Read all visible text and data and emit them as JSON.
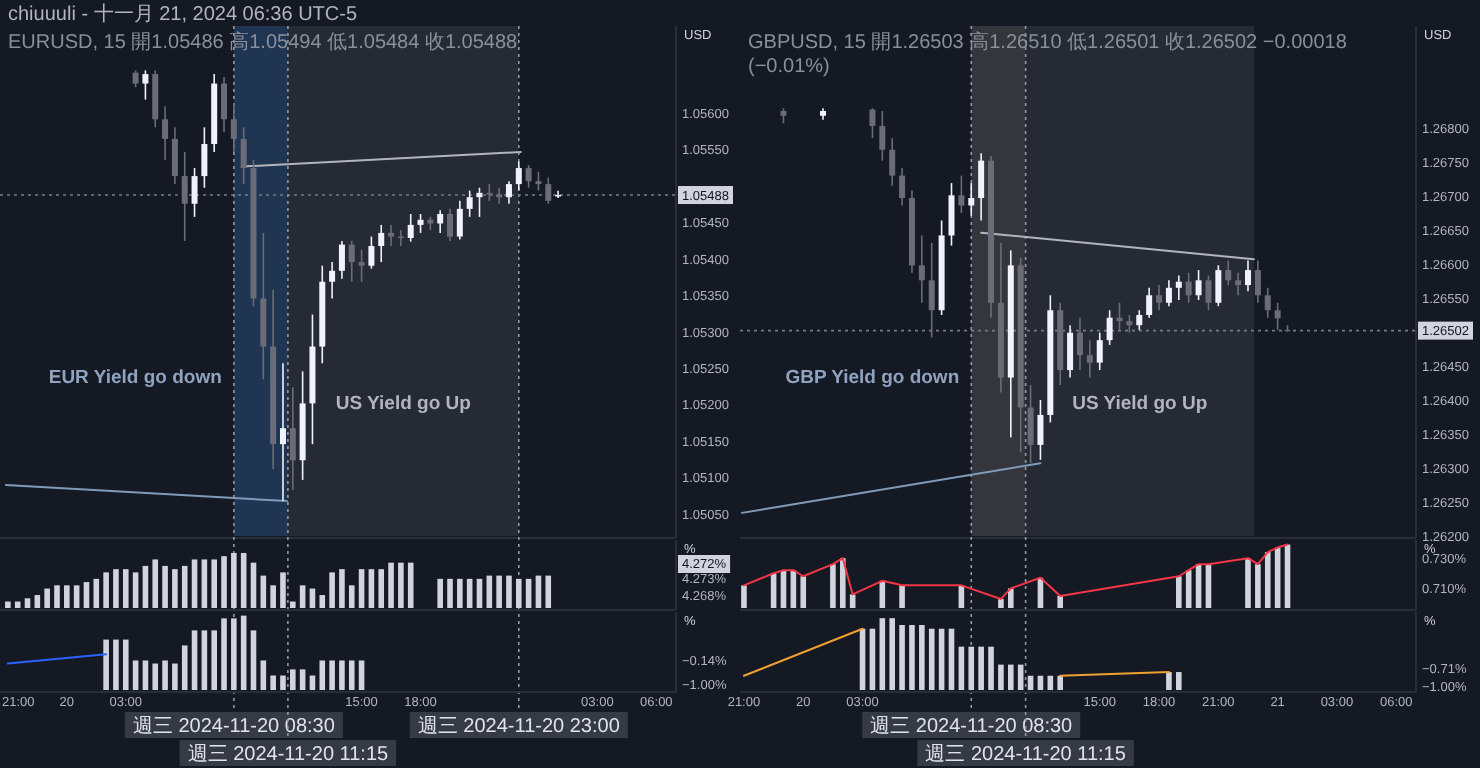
{
  "chart_data": [
    {
      "type": "candlestick",
      "title": "chiuuuli - 十一月 21, 2024 06:36 UTC-5",
      "subtitle": "EURUSD, 15 開1.05486 高1.05494 低1.05484 收1.05488",
      "ylabel": "USD",
      "x": [
        "2024-11-20T03:30",
        "2024-11-20T04:00",
        "2024-11-20T04:30",
        "2024-11-20T05:00",
        "2024-11-20T05:30",
        "2024-11-20T06:00",
        "2024-11-20T06:30",
        "2024-11-20T07:00",
        "2024-11-20T07:30",
        "2024-11-20T08:00",
        "2024-11-20T08:30",
        "2024-11-20T09:00",
        "2024-11-20T09:30",
        "2024-11-20T10:00",
        "2024-11-20T10:30",
        "2024-11-20T11:00",
        "2024-11-20T11:30",
        "2024-11-20T12:00",
        "2024-11-20T12:30",
        "2024-11-20T13:00",
        "2024-11-20T13:30",
        "2024-11-20T14:00",
        "2024-11-20T14:30",
        "2024-11-20T15:00",
        "2024-11-20T15:30",
        "2024-11-20T16:00",
        "2024-11-20T16:30",
        "2024-11-20T17:00",
        "2024-11-20T17:30",
        "2024-11-20T18:00",
        "2024-11-20T18:30",
        "2024-11-20T19:00",
        "2024-11-20T19:30",
        "2024-11-20T20:00",
        "2024-11-20T20:30",
        "2024-11-20T21:00",
        "2024-11-20T21:30",
        "2024-11-20T22:00",
        "2024-11-20T22:30",
        "2024-11-20T23:00",
        "2024-11-20T23:30",
        "2024-11-21T00:00",
        "2024-11-21T00:30",
        "2024-11-21T01:00"
      ],
      "ohlc": [
        [
          1.05656,
          1.05659,
          1.05636,
          1.05641
        ],
        [
          1.05641,
          1.05659,
          1.05619,
          1.05654
        ],
        [
          1.05654,
          1.05659,
          1.05581,
          1.05592
        ],
        [
          1.05592,
          1.0561,
          1.05536,
          1.05565
        ],
        [
          1.05565,
          1.05581,
          1.05503,
          1.05514
        ],
        [
          1.05514,
          1.05547,
          1.05425,
          1.05476
        ],
        [
          1.05476,
          1.05525,
          1.05458,
          1.05514
        ],
        [
          1.05514,
          1.05581,
          1.05498,
          1.05558
        ],
        [
          1.05558,
          1.05654,
          1.05547,
          1.05641
        ],
        [
          1.05641,
          1.0565,
          1.05574,
          1.05592
        ],
        [
          1.05592,
          1.05614,
          1.05547,
          1.05565
        ],
        [
          1.05565,
          1.05581,
          1.05503,
          1.05525
        ],
        [
          1.05525,
          1.05536,
          1.05335,
          1.05346
        ],
        [
          1.05346,
          1.05436,
          1.05235,
          1.0528
        ],
        [
          1.0528,
          1.05358,
          1.05112,
          1.05146
        ],
        [
          1.05146,
          1.05257,
          1.05068,
          1.05168
        ],
        [
          1.05168,
          1.05224,
          1.05083,
          1.05124
        ],
        [
          1.05124,
          1.05246,
          1.05097,
          1.05202
        ],
        [
          1.05202,
          1.05324,
          1.05146,
          1.0528
        ],
        [
          1.0528,
          1.05391,
          1.05257,
          1.05369
        ],
        [
          1.05369,
          1.05396,
          1.05346,
          1.05384
        ],
        [
          1.05384,
          1.05425,
          1.05373,
          1.0542
        ],
        [
          1.0542,
          1.05425,
          1.05369,
          1.05396
        ],
        [
          1.05396,
          1.05413,
          1.05369,
          1.05391
        ],
        [
          1.05391,
          1.05431,
          1.05387,
          1.05418
        ],
        [
          1.05418,
          1.05447,
          1.05396,
          1.05436
        ],
        [
          1.05436,
          1.05447,
          1.05418,
          1.05431
        ],
        [
          1.05431,
          1.0544,
          1.05418,
          1.05429
        ],
        [
          1.05429,
          1.05462,
          1.05424,
          1.05447
        ],
        [
          1.05447,
          1.05462,
          1.05436,
          1.05454
        ],
        [
          1.05454,
          1.05458,
          1.0544,
          1.05449
        ],
        [
          1.05449,
          1.05467,
          1.05436,
          1.05462
        ],
        [
          1.05462,
          1.05469,
          1.05425,
          1.05431
        ],
        [
          1.05431,
          1.0548,
          1.05427,
          1.05469
        ],
        [
          1.05469,
          1.05494,
          1.05458,
          1.05485
        ],
        [
          1.05485,
          1.05498,
          1.05458,
          1.05491
        ],
        [
          1.05491,
          1.05503,
          1.0548,
          1.05489
        ],
        [
          1.05489,
          1.05498,
          1.05476,
          1.05485
        ],
        [
          1.05485,
          1.05507,
          1.05476,
          1.05503
        ],
        [
          1.05503,
          1.05534,
          1.05494,
          1.05525
        ],
        [
          1.05525,
          1.05529,
          1.05498,
          1.05507
        ],
        [
          1.05507,
          1.0552,
          1.05494,
          1.05503
        ],
        [
          1.05503,
          1.05512,
          1.05476,
          1.0548
        ],
        [
          1.05486,
          1.05494,
          1.05484,
          1.05488
        ]
      ],
      "series": [
        {
          "type": "line",
          "color": "#b2b5be",
          "x": [
            "2024-11-20T08:54",
            "2024-11-20T23:06"
          ],
          "values": [
            1.05527,
            1.05547
          ]
        },
        {
          "type": "line",
          "color": "#7f9bb8",
          "x": [
            "2024-11-19T20:54",
            "2024-11-20T11:12"
          ],
          "values": [
            1.0509,
            1.05068
          ]
        }
      ],
      "xlim": [
        "2024-11-19T20:36",
        "2024-11-21T07:00"
      ],
      "ylim": [
        1.0502,
        1.0572
      ],
      "yticks": [
        {
          "value": 1.0505,
          "label": "1.05050"
        },
        {
          "value": 1.051,
          "label": "1.05100"
        },
        {
          "value": 1.0515,
          "label": "1.05150"
        },
        {
          "value": 1.052,
          "label": "1.05200"
        },
        {
          "value": 1.0525,
          "label": "1.05250"
        },
        {
          "value": 1.053,
          "label": "1.05300"
        },
        {
          "value": 1.0535,
          "label": "1.05350"
        },
        {
          "value": 1.054,
          "label": "1.05400"
        },
        {
          "value": 1.0545,
          "label": "1.05450"
        },
        {
          "value": 1.0555,
          "label": "1.05550"
        },
        {
          "value": 1.056,
          "label": "1.05600"
        }
      ],
      "tick_labels": "y",
      "bands": [
        {
          "axis": "x",
          "from": "2024-11-20T08:30",
          "to": "2024-11-20T11:15",
          "color": "#1f3552"
        },
        {
          "axis": "x",
          "from": "2024-11-20T11:15",
          "to": "2024-11-20T23:00",
          "color": "#262a35"
        }
      ],
      "ref_lines": [
        {
          "axis": "x",
          "value": "2024-11-20T08:30",
          "label": "週三 2024-11-20 08:30",
          "line_style": "dotted",
          "color": "#9598a1"
        },
        {
          "axis": "x",
          "value": "2024-11-20T11:15",
          "label": "週三 2024-11-20 11:15",
          "line_style": "dotted",
          "color": "#9598a1"
        },
        {
          "axis": "x",
          "value": "2024-11-20T23:00",
          "label": "週三 2024-11-20 23:00",
          "line_style": "dotted",
          "color": "#9598a1"
        },
        {
          "axis": "y",
          "value": 1.05488,
          "label": "1.05488",
          "line_style": "dotted",
          "color": "#787b86"
        }
      ],
      "annotations": [
        "EUR Yield go down",
        "US Yield go Up"
      ]
    },
    {
      "type": "bar",
      "ylabel": "%",
      "x": [
        "2024-11-19T21:00",
        "2024-11-19T21:30",
        "2024-11-19T22:00",
        "2024-11-19T22:30",
        "2024-11-19T23:00",
        "2024-11-19T23:30",
        "2024-11-20T00:00",
        "2024-11-20T00:30",
        "2024-11-20T01:00",
        "2024-11-20T01:30",
        "2024-11-20T02:00",
        "2024-11-20T02:30",
        "2024-11-20T03:00",
        "2024-11-20T03:30",
        "2024-11-20T04:00",
        "2024-11-20T04:30",
        "2024-11-20T05:00",
        "2024-11-20T05:30",
        "2024-11-20T06:00",
        "2024-11-20T06:30",
        "2024-11-20T07:00",
        "2024-11-20T07:30",
        "2024-11-20T08:00",
        "2024-11-20T08:30",
        "2024-11-20T09:00",
        "2024-11-20T09:30",
        "2024-11-20T10:00",
        "2024-11-20T10:30",
        "2024-11-20T11:00",
        "2024-11-20T11:30",
        "2024-11-20T12:00",
        "2024-11-20T12:30",
        "2024-11-20T13:00",
        "2024-11-20T13:30",
        "2024-11-20T14:00",
        "2024-11-20T14:30",
        "2024-11-20T15:00",
        "2024-11-20T15:30",
        "2024-11-20T16:00",
        "2024-11-20T16:30",
        "2024-11-20T17:00",
        "2024-11-20T17:30",
        "2024-11-20T19:00",
        "2024-11-20T19:30",
        "2024-11-20T20:00",
        "2024-11-20T20:30",
        "2024-11-20T21:00",
        "2024-11-20T21:30",
        "2024-11-20T22:00",
        "2024-11-20T22:30",
        "2024-11-20T23:00",
        "2024-11-20T23:30",
        "2024-11-21T00:00",
        "2024-11-21T00:30"
      ],
      "series": [
        {
          "color": "#d1d4dc",
          "values": [
            4.266,
            4.266,
            4.267,
            4.268,
            4.27,
            4.271,
            4.271,
            4.271,
            4.272,
            4.273,
            4.275,
            4.276,
            4.276,
            4.275,
            4.277,
            4.279,
            4.277,
            4.276,
            4.277,
            4.279,
            4.279,
            4.279,
            4.28,
            4.281,
            4.281,
            4.278,
            4.274,
            4.271,
            4.275,
            4.266,
            4.271,
            4.27,
            4.268,
            4.275,
            4.276,
            4.271,
            4.276,
            4.276,
            4.276,
            4.278,
            4.278,
            4.278,
            4.273,
            4.273,
            4.273,
            4.273,
            4.273,
            4.274,
            4.274,
            4.274,
            4.273,
            4.273,
            4.274,
            4.274
          ]
        }
      ],
      "xlim": [
        "2024-11-19T20:36",
        "2024-11-21T07:00"
      ],
      "ylim": [
        4.264,
        4.285
      ],
      "yticks": [
        {
          "value": 4.268,
          "label": "4.268%"
        },
        {
          "value": 4.273,
          "label": "4.273%"
        }
      ],
      "tick_labels": "y",
      "annotations": [
        "4.272%"
      ]
    },
    {
      "type": "bar",
      "ylabel": "%",
      "x": [
        "2024-11-20T02:00",
        "2024-11-20T02:30",
        "2024-11-20T03:00",
        "2024-11-20T03:30",
        "2024-11-20T04:00",
        "2024-11-20T04:30",
        "2024-11-20T05:00",
        "2024-11-20T05:30",
        "2024-11-20T06:00",
        "2024-11-20T06:30",
        "2024-11-20T07:00",
        "2024-11-20T07:30",
        "2024-11-20T08:00",
        "2024-11-20T08:30",
        "2024-11-20T09:00",
        "2024-11-20T09:30",
        "2024-11-20T10:00",
        "2024-11-20T10:30",
        "2024-11-20T11:00",
        "2024-11-20T11:30",
        "2024-11-20T12:00",
        "2024-11-20T12:30",
        "2024-11-20T13:00",
        "2024-11-20T13:30",
        "2024-11-20T14:00",
        "2024-11-20T14:30",
        "2024-11-20T15:00"
      ],
      "series": [
        {
          "color": "#d1d4dc",
          "base": [
            -1.2,
            -1.2,
            -1.2,
            -1.2,
            -1.2,
            -1.2,
            -1.2,
            -1.2,
            -1.2,
            -1.2,
            -1.2,
            -1.2,
            -1.2,
            -1.2,
            -1.2,
            -1.2,
            -1.2,
            -1.2,
            -1.2,
            -1.2,
            -1.2,
            -1.2,
            -1.2,
            -1.2,
            -1.2,
            -1.2,
            -1.2
          ],
          "values": [
            1.81,
            1.81,
            1.81,
            1.06,
            1.06,
            0.95,
            1.06,
            0.95,
            1.6,
            2.14,
            2.14,
            2.14,
            2.57,
            2.57,
            2.67,
            2.14,
            1.06,
            0.52,
            0.52,
            0.74,
            0.74,
            0.52,
            1.06,
            1.06,
            1.06,
            1.06,
            1.06
          ]
        },
        {
          "type": "line",
          "color": "#2962ff",
          "x": [
            "2024-11-19T21:00",
            "2024-11-20T02:00"
          ],
          "values": [
            -0.25,
            0.08
          ]
        }
      ],
      "xlim": [
        "2024-11-19T20:36",
        "2024-11-21T07:00"
      ],
      "ylim": [
        -1.2,
        1.6
      ],
      "yticks": [
        {
          "value": -0.14,
          "label": "−0.14%"
        },
        {
          "value": -1.0,
          "label": "−1.00%"
        }
      ],
      "xticks": [
        {
          "value": "2024-11-19T21:00",
          "label": "21:00"
        },
        {
          "value": "2024-11-20T00:00",
          "label": "20"
        },
        {
          "value": "2024-11-20T03:00",
          "label": "03:00"
        },
        {
          "value": "2024-11-20T15:00",
          "label": "15:00"
        },
        {
          "value": "2024-11-20T18:00",
          "label": "18:00"
        },
        {
          "value": "2024-11-21T03:00",
          "label": "03:00"
        },
        {
          "value": "2024-11-21T06:00",
          "label": "06:00"
        }
      ]
    },
    {
      "type": "candlestick",
      "subtitle": "GBPUSD, 15 開1.26503 高1.26510 低1.26501 收1.26502 −0.00018 (−0.01%)",
      "ylabel": "USD",
      "x": [
        "2024-11-19T23:00",
        "2024-11-20T01:00",
        "2024-11-20T03:30",
        "2024-11-20T04:00",
        "2024-11-20T04:30",
        "2024-11-20T05:00",
        "2024-11-20T05:30",
        "2024-11-20T06:00",
        "2024-11-20T06:30",
        "2024-11-20T07:00",
        "2024-11-20T07:30",
        "2024-11-20T08:00",
        "2024-11-20T08:30",
        "2024-11-20T09:00",
        "2024-11-20T09:30",
        "2024-11-20T10:00",
        "2024-11-20T10:30",
        "2024-11-20T11:00",
        "2024-11-20T11:30",
        "2024-11-20T12:00",
        "2024-11-20T12:30",
        "2024-11-20T13:00",
        "2024-11-20T13:30",
        "2024-11-20T14:00",
        "2024-11-20T14:30",
        "2024-11-20T15:00",
        "2024-11-20T15:30",
        "2024-11-20T16:00",
        "2024-11-20T16:30",
        "2024-11-20T17:00",
        "2024-11-20T17:30",
        "2024-11-20T18:00",
        "2024-11-20T18:30",
        "2024-11-20T19:00",
        "2024-11-20T19:30",
        "2024-11-20T20:00",
        "2024-11-20T20:30",
        "2024-11-20T21:00",
        "2024-11-20T21:30",
        "2024-11-20T22:00",
        "2024-11-20T22:30",
        "2024-11-20T23:00",
        "2024-11-20T23:30",
        "2024-11-21T00:00",
        "2024-11-21T00:30"
      ],
      "ohlc": [
        [
          1.26825,
          1.26829,
          1.26807,
          1.26818
        ],
        [
          1.26818,
          1.26829,
          1.26812,
          1.26825
        ],
        [
          1.26827,
          1.26829,
          1.26785,
          1.26803
        ],
        [
          1.26803,
          1.26825,
          1.26752,
          1.26768
        ],
        [
          1.26768,
          1.26785,
          1.26715,
          1.2673
        ],
        [
          1.2673,
          1.26741,
          1.26686,
          1.26697
        ],
        [
          1.26697,
          1.26708,
          1.26587,
          1.26598
        ],
        [
          1.26598,
          1.26642,
          1.26543,
          1.26576
        ],
        [
          1.26576,
          1.26631,
          1.26492,
          1.26532
        ],
        [
          1.26532,
          1.26664,
          1.26525,
          1.26642
        ],
        [
          1.26642,
          1.26719,
          1.26627,
          1.26701
        ],
        [
          1.26701,
          1.2673,
          1.26675,
          1.26686
        ],
        [
          1.26686,
          1.26719,
          1.26671,
          1.26697
        ],
        [
          1.26697,
          1.26763,
          1.26664,
          1.26752
        ],
        [
          1.26752,
          1.26759,
          1.26521,
          1.26543
        ],
        [
          1.26543,
          1.26631,
          1.26411,
          1.26433
        ],
        [
          1.26433,
          1.2662,
          1.26345,
          1.26598
        ],
        [
          1.26598,
          1.26609,
          1.26323,
          1.26389
        ],
        [
          1.26389,
          1.26422,
          1.26307,
          1.26334
        ],
        [
          1.26334,
          1.264,
          1.26312,
          1.26378
        ],
        [
          1.26378,
          1.26554,
          1.26367,
          1.26532
        ],
        [
          1.26532,
          1.26543,
          1.26422,
          1.26444
        ],
        [
          1.26444,
          1.2651,
          1.26433,
          1.26499
        ],
        [
          1.26499,
          1.26521,
          1.26444,
          1.26466
        ],
        [
          1.26466,
          1.26488,
          1.26433,
          1.26455
        ],
        [
          1.26455,
          1.26499,
          1.26444,
          1.26488
        ],
        [
          1.26488,
          1.26532,
          1.26481,
          1.26521
        ],
        [
          1.26521,
          1.26543,
          1.26503,
          1.26516
        ],
        [
          1.26516,
          1.26525,
          1.26499,
          1.2651
        ],
        [
          1.2651,
          1.26532,
          1.26503,
          1.26525
        ],
        [
          1.26525,
          1.26565,
          1.26521,
          1.26554
        ],
        [
          1.26554,
          1.26569,
          1.26532,
          1.26543
        ],
        [
          1.26543,
          1.26576,
          1.26538,
          1.26565
        ],
        [
          1.26565,
          1.26583,
          1.26547,
          1.26574
        ],
        [
          1.26574,
          1.26587,
          1.26543,
          1.26554
        ],
        [
          1.26554,
          1.26591,
          1.26547,
          1.26576
        ],
        [
          1.26576,
          1.26583,
          1.26532,
          1.26543
        ],
        [
          1.26543,
          1.26598,
          1.26538,
          1.26591
        ],
        [
          1.26591,
          1.26605,
          1.26569,
          1.26576
        ],
        [
          1.26576,
          1.26587,
          1.26554,
          1.26569
        ],
        [
          1.26569,
          1.26605,
          1.2656,
          1.26591
        ],
        [
          1.26591,
          1.26605,
          1.26543,
          1.26554
        ],
        [
          1.26554,
          1.26565,
          1.26521,
          1.26532
        ],
        [
          1.26532,
          1.26543,
          1.26503,
          1.2652
        ],
        [
          1.26503,
          1.2651,
          1.26501,
          1.26502
        ]
      ],
      "series": [
        {
          "type": "line",
          "color": "#b2b5be",
          "x": [
            "2024-11-20T09:00",
            "2024-11-20T22:48"
          ],
          "values": [
            1.26646,
            1.26607
          ]
        },
        {
          "type": "line",
          "color": "#7f9bb8",
          "x": [
            "2024-11-19T20:54",
            "2024-11-20T12:00"
          ],
          "values": [
            1.26234,
            1.26307
          ]
        }
      ],
      "xlim": [
        "2024-11-19T20:48",
        "2024-11-21T07:00"
      ],
      "ylim": [
        1.262,
        1.2695
      ],
      "yticks": [
        {
          "value": 1.262,
          "label": "1.26200"
        },
        {
          "value": 1.2625,
          "label": "1.26250"
        },
        {
          "value": 1.263,
          "label": "1.26300"
        },
        {
          "value": 1.2635,
          "label": "1.26350"
        },
        {
          "value": 1.264,
          "label": "1.26400"
        },
        {
          "value": 1.2645,
          "label": "1.26450"
        },
        {
          "value": 1.2655,
          "label": "1.26550"
        },
        {
          "value": 1.266,
          "label": "1.26600"
        },
        {
          "value": 1.2665,
          "label": "1.26650"
        },
        {
          "value": 1.267,
          "label": "1.26700"
        },
        {
          "value": 1.2675,
          "label": "1.26750"
        },
        {
          "value": 1.268,
          "label": "1.26800"
        }
      ],
      "tick_labels": "y",
      "bands": [
        {
          "axis": "x",
          "from": "2024-11-20T08:30",
          "to": "2024-11-20T11:15",
          "color": "#35363c"
        },
        {
          "axis": "x",
          "from": "2024-11-20T11:15",
          "to": "2024-11-20T22:48",
          "color": "#262a35"
        }
      ],
      "ref_lines": [
        {
          "axis": "x",
          "value": "2024-11-20T08:30",
          "label": "週三 2024-11-20 08:30",
          "line_style": "dotted",
          "color": "#9598a1"
        },
        {
          "axis": "x",
          "value": "2024-11-20T11:15",
          "label": "週三 2024-11-20 11:15",
          "line_style": "dotted",
          "color": "#9598a1"
        },
        {
          "axis": "y",
          "value": 1.26502,
          "label": "1.26502",
          "line_style": "dotted",
          "color": "#787b86"
        }
      ],
      "annotations": [
        "GBP Yield go down",
        "US Yield go Up"
      ]
    },
    {
      "type": "bar",
      "ylabel": "%",
      "x": [
        "2024-11-19T21:00",
        "2024-11-19T22:30",
        "2024-11-19T23:00",
        "2024-11-19T23:30",
        "2024-11-20T00:00",
        "2024-11-20T01:30",
        "2024-11-20T02:00",
        "2024-11-20T02:30",
        "2024-11-20T04:00",
        "2024-11-20T05:00",
        "2024-11-20T08:00",
        "2024-11-20T10:00",
        "2024-11-20T10:30",
        "2024-11-20T12:00",
        "2024-11-20T13:00",
        "2024-11-20T19:00",
        "2024-11-20T19:30",
        "2024-11-20T20:00",
        "2024-11-20T20:30",
        "2024-11-20T22:30",
        "2024-11-20T23:00",
        "2024-11-20T23:30",
        "2024-11-21T00:00",
        "2024-11-21T00:30"
      ],
      "series": [
        {
          "color": "#d1d4dc",
          "values": [
            0.712,
            0.72,
            0.722,
            0.722,
            0.718,
            0.726,
            0.73,
            0.706,
            0.715,
            0.712,
            0.712,
            0.703,
            0.71,
            0.717,
            0.705,
            0.718,
            0.722,
            0.726,
            0.726,
            0.73,
            0.726,
            0.734,
            0.737,
            0.739
          ]
        },
        {
          "type": "line",
          "color": "#f23645",
          "values": [
            0.712,
            0.72,
            0.722,
            0.722,
            0.718,
            0.726,
            0.73,
            0.706,
            0.715,
            0.712,
            0.712,
            0.703,
            0.71,
            0.717,
            0.705,
            0.718,
            0.722,
            0.726,
            0.726,
            0.73,
            0.726,
            0.734,
            0.737,
            0.739
          ]
        }
      ],
      "xlim": [
        "2024-11-19T20:48",
        "2024-11-21T07:00"
      ],
      "ylim": [
        0.697,
        0.742
      ],
      "yticks": [
        {
          "value": 0.73,
          "label": "0.730%"
        },
        {
          "value": 0.71,
          "label": "0.710%"
        }
      ],
      "tick_labels": "y"
    },
    {
      "type": "bar",
      "ylabel": "%",
      "x": [
        "2024-11-20T03:00",
        "2024-11-20T03:30",
        "2024-11-20T04:00",
        "2024-11-20T04:30",
        "2024-11-20T05:00",
        "2024-11-20T05:30",
        "2024-11-20T06:00",
        "2024-11-20T06:30",
        "2024-11-20T07:00",
        "2024-11-20T07:30",
        "2024-11-20T08:00",
        "2024-11-20T08:30",
        "2024-11-20T09:00",
        "2024-11-20T09:30",
        "2024-11-20T10:00",
        "2024-11-20T10:30",
        "2024-11-20T11:00",
        "2024-11-20T11:30",
        "2024-11-20T12:00",
        "2024-11-20T12:30",
        "2024-11-20T13:00",
        "2024-11-20T18:30",
        "2024-11-20T19:00"
      ],
      "series": [
        {
          "color": "#d1d4dc",
          "base": [
            -1.06,
            -1.06,
            -1.06,
            -1.06,
            -1.06,
            -1.06,
            -1.06,
            -1.06,
            -1.06,
            -1.06,
            -1.06,
            -1.06,
            -1.06,
            -1.06,
            -1.06,
            -1.06,
            -1.06,
            -1.06,
            -1.06,
            -1.06,
            -1.06,
            -1.06,
            -1.06
          ],
          "values": [
            0.99,
            0.99,
            1.16,
            1.16,
            1.05,
            1.05,
            1.05,
            0.99,
            0.99,
            0.99,
            0.7,
            0.7,
            0.7,
            0.7,
            0.41,
            0.41,
            0.41,
            0.23,
            0.23,
            0.23,
            0.23,
            0.29,
            0.29
          ]
        },
        {
          "type": "line",
          "color": "#f0a030",
          "x": [
            "2024-11-19T21:00",
            "2024-11-20T03:00"
          ],
          "values": [
            -0.83,
            -0.07
          ]
        },
        {
          "type": "line",
          "color": "#f0a030",
          "x": [
            "2024-11-20T13:00",
            "2024-11-20T18:30"
          ],
          "values": [
            -0.83,
            -0.77
          ]
        }
      ],
      "xlim": [
        "2024-11-19T20:48",
        "2024-11-21T07:00"
      ],
      "ylim": [
        -1.06,
        0.2
      ],
      "yticks": [
        {
          "value": -0.71,
          "label": "−0.71%"
        },
        {
          "value": -1.0,
          "label": "−1.00%"
        }
      ],
      "xticks": [
        {
          "value": "2024-11-19T21:00",
          "label": "21:00"
        },
        {
          "value": "2024-11-20T00:00",
          "label": "20"
        },
        {
          "value": "2024-11-20T03:00",
          "label": "03:00"
        },
        {
          "value": "2024-11-20T15:00",
          "label": "15:00"
        },
        {
          "value": "2024-11-20T18:00",
          "label": "18:00"
        },
        {
          "value": "2024-11-20T21:00",
          "label": "21:00"
        },
        {
          "value": "2024-11-21T00:00",
          "label": "21"
        },
        {
          "value": "2024-11-21T03:00",
          "label": "03:00"
        },
        {
          "value": "2024-11-21T06:00",
          "label": "06:00"
        }
      ]
    }
  ]
}
